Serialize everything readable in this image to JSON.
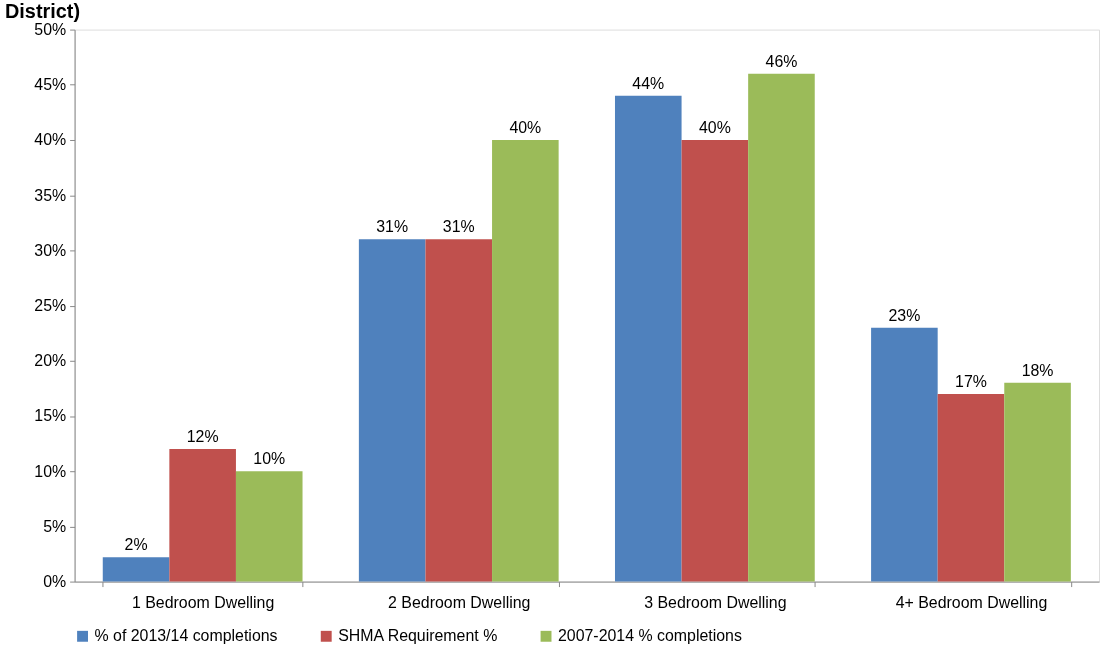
{
  "chart_data": {
    "type": "bar",
    "title": "District)",
    "categories": [
      "1 Bedroom Dwelling",
      "2 Bedroom Dwelling",
      "3 Bedroom Dwelling",
      "4+ Bedroom Dwelling"
    ],
    "series": [
      {
        "name": "% of 2013/14 completions",
        "color": "#4f81bd",
        "values": [
          2.2,
          31,
          44,
          23
        ],
        "value_labels": [
          "2%",
          "31%",
          "44%",
          "23%"
        ]
      },
      {
        "name": "SHMA Requirement %",
        "color": "#c0504d",
        "values": [
          12,
          31,
          40,
          17
        ],
        "value_labels": [
          "12%",
          "31%",
          "40%",
          "17%"
        ]
      },
      {
        "name": "2007-2014 % completions",
        "color": "#9bbb59",
        "values": [
          10,
          40,
          46,
          18
        ],
        "value_labels": [
          "10%",
          "40%",
          "46%",
          "18%"
        ]
      }
    ],
    "ylim": [
      0,
      50
    ],
    "yticks": [
      {
        "value": 0,
        "label": "0%"
      },
      {
        "value": 5,
        "label": "5%"
      },
      {
        "value": 10,
        "label": "10%"
      },
      {
        "value": 15,
        "label": "15%"
      },
      {
        "value": 20,
        "label": "20%"
      },
      {
        "value": 25,
        "label": "25%"
      },
      {
        "value": 30,
        "label": "30%"
      },
      {
        "value": 35,
        "label": "35%"
      },
      {
        "value": 40,
        "label": "40%"
      },
      {
        "value": 45,
        "label": "45%"
      },
      {
        "value": 50,
        "label": "50%"
      }
    ],
    "grid": false,
    "legend": "bottom"
  }
}
